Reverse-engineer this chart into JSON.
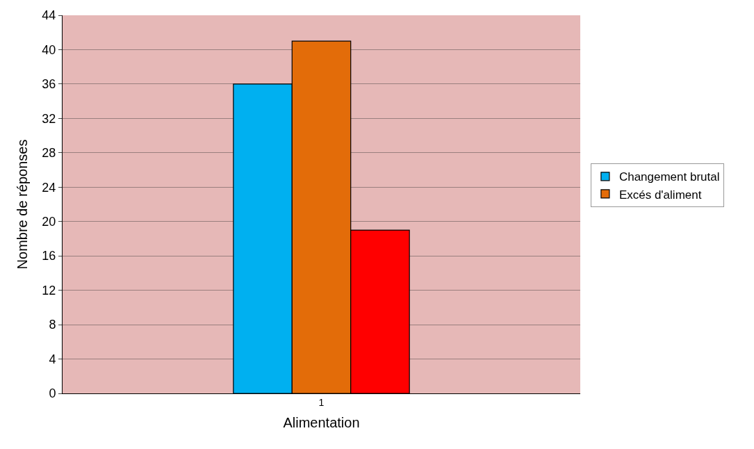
{
  "chart_data": {
    "type": "bar",
    "xlabel": "Alimentation",
    "ylabel": "Nombre de réponses",
    "categories": [
      "1"
    ],
    "series": [
      {
        "name": "Changement brutal",
        "color": "#00b0f0",
        "values": [
          36
        ]
      },
      {
        "name": "Excés d'aliment",
        "color": "#e36c09",
        "values": [
          41
        ]
      },
      {
        "color": "#ff0000",
        "values": [
          19
        ]
      }
    ],
    "ylim": [
      0,
      44
    ],
    "yticks": [
      0,
      4,
      8,
      12,
      16,
      20,
      24,
      28,
      32,
      36,
      40,
      44
    ],
    "grid": "y",
    "legend": "right"
  }
}
